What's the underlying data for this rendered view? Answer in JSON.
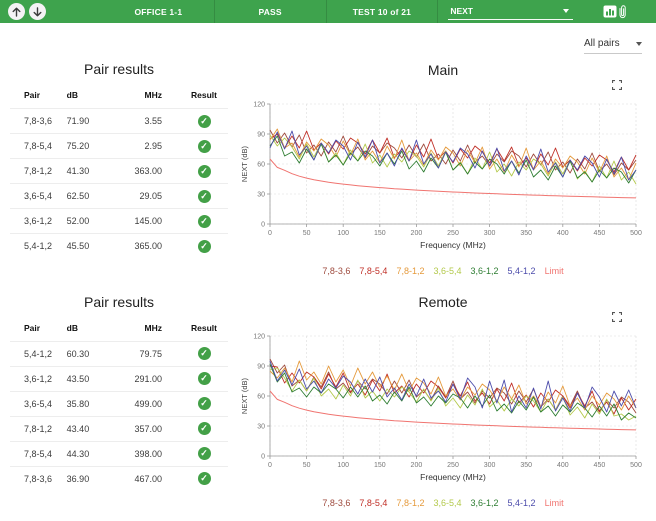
{
  "toolbar": {
    "site_label": "OFFICE 1-1",
    "status_label": "PASS",
    "test_label": "TEST 10 of 21",
    "measurement_select": {
      "value": "NEXT"
    },
    "accent_green": "#3ea34d",
    "icons": [
      "arrow-up",
      "arrow-down",
      "bar-chart",
      "paperclip"
    ]
  },
  "filter": {
    "all_pairs_label": "All pairs"
  },
  "colors": {
    "pass_green": "#43a047",
    "toolbar_green": "#3ea34d"
  },
  "tables": [
    {
      "title": "Pair results",
      "columns": [
        "Pair",
        "dB",
        "MHz",
        "Result"
      ],
      "rows": [
        {
          "pair": "7,8-3,6",
          "db": "71.90",
          "mhz": "3.55",
          "result": "pass"
        },
        {
          "pair": "7,8-5,4",
          "db": "75.20",
          "mhz": "2.95",
          "result": "pass"
        },
        {
          "pair": "7,8-1,2",
          "db": "41.30",
          "mhz": "363.00",
          "result": "pass"
        },
        {
          "pair": "3,6-5,4",
          "db": "62.50",
          "mhz": "29.05",
          "result": "pass"
        },
        {
          "pair": "3,6-1,2",
          "db": "52.00",
          "mhz": "145.00",
          "result": "pass"
        },
        {
          "pair": "5,4-1,2",
          "db": "45.50",
          "mhz": "365.00",
          "result": "pass"
        }
      ]
    },
    {
      "title": "Pair results",
      "columns": [
        "Pair",
        "dB",
        "MHz",
        "Result"
      ],
      "rows": [
        {
          "pair": "5,4-1,2",
          "db": "60.30",
          "mhz": "79.75",
          "result": "pass"
        },
        {
          "pair": "3,6-1,2",
          "db": "43.50",
          "mhz": "291.00",
          "result": "pass"
        },
        {
          "pair": "3,6-5,4",
          "db": "35.80",
          "mhz": "499.00",
          "result": "pass"
        },
        {
          "pair": "7,8-1,2",
          "db": "43.40",
          "mhz": "357.00",
          "result": "pass"
        },
        {
          "pair": "7,8-5,4",
          "db": "44.30",
          "mhz": "398.00",
          "result": "pass"
        },
        {
          "pair": "7,8-3,6",
          "db": "36.90",
          "mhz": "467.00",
          "result": "pass"
        }
      ]
    }
  ],
  "chart_data": [
    {
      "type": "line",
      "title": "Main",
      "xlabel": "Frequency (MHz)",
      "ylabel": "NEXT (dB)",
      "xlim": [
        0,
        500
      ],
      "ylim": [
        0,
        120
      ],
      "xticks": [
        0,
        50,
        100,
        150,
        200,
        250,
        300,
        350,
        400,
        450,
        500
      ],
      "yticks": [
        0,
        30,
        60,
        90,
        120
      ],
      "grid": true,
      "legend_position": "bottom",
      "x": [
        0,
        10,
        20,
        30,
        40,
        50,
        60,
        70,
        80,
        90,
        100,
        110,
        120,
        130,
        140,
        150,
        160,
        170,
        180,
        190,
        200,
        210,
        220,
        230,
        240,
        250,
        260,
        270,
        280,
        290,
        300,
        310,
        320,
        330,
        340,
        350,
        360,
        370,
        380,
        390,
        400,
        410,
        420,
        430,
        440,
        450,
        460,
        470,
        480,
        490,
        500
      ],
      "series": [
        {
          "name": "7,8-3,6",
          "color": "#9e4a3d",
          "values": [
            94,
            81,
            91,
            77,
            89,
            71,
            79,
            68,
            82,
            72,
            88,
            70,
            77,
            66,
            78,
            71,
            81,
            76,
            66,
            79,
            67,
            80,
            63,
            70,
            60,
            74,
            63,
            79,
            62,
            68,
            58,
            70,
            62,
            73,
            68,
            57,
            70,
            59,
            72,
            54,
            62,
            51,
            65,
            55,
            71,
            53,
            60,
            49,
            61,
            54,
            64
          ]
        },
        {
          "name": "7,8-5,4",
          "color": "#c02f27",
          "values": [
            85,
            90,
            76,
            88,
            76,
            93,
            74,
            81,
            70,
            83,
            75,
            86,
            81,
            70,
            84,
            71,
            86,
            66,
            75,
            63,
            79,
            67,
            85,
            65,
            73,
            61,
            75,
            66,
            78,
            72,
            61,
            75,
            63,
            77,
            58,
            66,
            55,
            70,
            59,
            76,
            57,
            64,
            53,
            66,
            58,
            69,
            64,
            52,
            67,
            54,
            69
          ]
        },
        {
          "name": "7,8-1,2",
          "color": "#e59a3c",
          "values": [
            84,
            95,
            76,
            81,
            67,
            82,
            73,
            85,
            79,
            67,
            83,
            69,
            85,
            64,
            73,
            61,
            78,
            65,
            84,
            63,
            71,
            59,
            74,
            64,
            77,
            71,
            58,
            74,
            61,
            77,
            55,
            65,
            52,
            69,
            57,
            76,
            54,
            63,
            50,
            65,
            56,
            68,
            62,
            50,
            66,
            52,
            68,
            47,
            56,
            44,
            61
          ]
        },
        {
          "name": "3,6-5,4",
          "color": "#b3c94b",
          "values": [
            89,
            78,
            86,
            77,
            65,
            80,
            67,
            81,
            62,
            71,
            59,
            74,
            63,
            80,
            61,
            69,
            57,
            70,
            62,
            73,
            68,
            57,
            71,
            58,
            73,
            54,
            62,
            50,
            66,
            55,
            72,
            52,
            60,
            48,
            62,
            54,
            65,
            60,
            48,
            62,
            50,
            64,
            45,
            53,
            42,
            58,
            46,
            63,
            44,
            52,
            40
          ]
        },
        {
          "name": "3,6-1,2",
          "color": "#2e7d32",
          "values": [
            78,
            88,
            68,
            72,
            61,
            75,
            64,
            80,
            62,
            69,
            59,
            71,
            63,
            73,
            68,
            58,
            71,
            60,
            73,
            55,
            63,
            52,
            66,
            56,
            72,
            54,
            61,
            50,
            62,
            55,
            65,
            60,
            50,
            63,
            51,
            64,
            47,
            54,
            44,
            58,
            47,
            63,
            46,
            52,
            42,
            54,
            46,
            56,
            52,
            41,
            54
          ]
        },
        {
          "name": "5,4-1,2",
          "color": "#4c4cab",
          "values": [
            76,
            92,
            75,
            93,
            69,
            78,
            64,
            81,
            71,
            84,
            78,
            64,
            82,
            67,
            84,
            61,
            71,
            58,
            76,
            63,
            84,
            60,
            70,
            56,
            72,
            62,
            76,
            70,
            56,
            73,
            58,
            76,
            53,
            63,
            49,
            68,
            54,
            75,
            52,
            61,
            47,
            64,
            54,
            68,
            61,
            47,
            65,
            50,
            67,
            44,
            54
          ]
        },
        {
          "name": "Limit",
          "color": "#f07470",
          "values": [
            65,
            56.6,
            53.7,
            50.3,
            47.8,
            45.9,
            44.3,
            43,
            41.8,
            40.8,
            39.9,
            39.1,
            38.3,
            37.6,
            37,
            36.4,
            35.9,
            35.3,
            34.9,
            34.4,
            33.9,
            33.5,
            33.1,
            32.7,
            32.4,
            32,
            31.7,
            31.4,
            31,
            30.7,
            30.5,
            30.2,
            29.9,
            29.6,
            29.4,
            29.1,
            28.9,
            28.7,
            28.4,
            28.2,
            28,
            27.8,
            27.6,
            27.4,
            27.2,
            27,
            26.8,
            26.6,
            26.4,
            26.2,
            26.1
          ]
        }
      ]
    },
    {
      "type": "line",
      "title": "Remote",
      "xlabel": "Frequency (MHz)",
      "ylabel": "NEXT (dB)",
      "xlim": [
        0,
        500
      ],
      "ylim": [
        0,
        120
      ],
      "xticks": [
        0,
        50,
        100,
        150,
        200,
        250,
        300,
        350,
        400,
        450,
        500
      ],
      "yticks": [
        0,
        30,
        60,
        90,
        120
      ],
      "grid": true,
      "legend_position": "bottom",
      "x": [
        0,
        10,
        20,
        30,
        40,
        50,
        60,
        70,
        80,
        90,
        100,
        110,
        120,
        130,
        140,
        150,
        160,
        170,
        180,
        190,
        200,
        210,
        220,
        230,
        240,
        250,
        260,
        270,
        280,
        290,
        300,
        310,
        320,
        330,
        340,
        350,
        360,
        370,
        380,
        390,
        400,
        410,
        420,
        430,
        440,
        450,
        460,
        470,
        480,
        490,
        500
      ],
      "series": [
        {
          "name": "7,8-3,6",
          "color": "#9e4a3d",
          "values": [
            97,
            83,
            91,
            70,
            76,
            65,
            79,
            69,
            84,
            67,
            73,
            63,
            75,
            67,
            77,
            72,
            62,
            75,
            63,
            76,
            59,
            66,
            56,
            70,
            59,
            75,
            57,
            64,
            53,
            65,
            58,
            68,
            63,
            52,
            65,
            54,
            67,
            49,
            57,
            46,
            60,
            50,
            65,
            48,
            54,
            44,
            56,
            48,
            59,
            54,
            43
          ]
        },
        {
          "name": "7,8-5,4",
          "color": "#c02f27",
          "values": [
            90,
            89,
            73,
            83,
            73,
            84,
            79,
            67,
            82,
            69,
            83,
            64,
            72,
            61,
            76,
            65,
            82,
            63,
            70,
            59,
            72,
            63,
            75,
            69,
            58,
            72,
            60,
            74,
            55,
            63,
            52,
            67,
            55,
            73,
            53,
            61,
            49,
            63,
            54,
            66,
            60,
            48,
            63,
            50,
            65,
            45,
            54,
            42,
            58,
            46,
            57
          ]
        },
        {
          "name": "7,8-1,2",
          "color": "#e59a3c",
          "values": [
            85,
            78,
            88,
            74,
            95,
            76,
            84,
            72,
            90,
            74,
            86,
            70,
            88,
            72,
            84,
            69,
            80,
            66,
            82,
            65,
            78,
            73,
            62,
            79,
            60,
            67,
            56,
            69,
            61,
            72,
            66,
            55,
            69,
            57,
            71,
            52,
            60,
            49,
            64,
            53,
            70,
            50,
            58,
            46,
            60,
            51,
            63,
            57,
            46,
            60,
            48
          ]
        },
        {
          "name": "3,6-5,4",
          "color": "#b3c94b",
          "values": [
            86,
            88,
            78,
            65,
            76,
            65,
            78,
            60,
            67,
            57,
            71,
            60,
            76,
            58,
            65,
            55,
            67,
            59,
            69,
            64,
            54,
            67,
            55,
            68,
            50,
            58,
            48,
            61,
            51,
            67,
            49,
            56,
            45,
            57,
            50,
            60,
            55,
            44,
            57,
            46,
            59,
            41,
            49,
            38,
            52,
            42,
            57,
            40,
            42,
            36,
            40
          ]
        },
        {
          "name": "3,6-1,2",
          "color": "#2e7d32",
          "values": [
            92,
            74,
            83,
            64,
            68,
            59,
            69,
            63,
            72,
            67,
            58,
            69,
            59,
            70,
            55,
            61,
            52,
            64,
            55,
            69,
            53,
            59,
            50,
            60,
            53,
            62,
            58,
            48,
            60,
            50,
            61,
            45,
            52,
            43,
            55,
            46,
            59,
            44,
            50,
            40,
            51,
            44,
            53,
            48,
            39,
            50,
            40,
            52,
            36,
            43,
            38
          ]
        },
        {
          "name": "5,4-1,2",
          "color": "#4c4cab",
          "values": [
            95,
            75,
            86,
            71,
            87,
            67,
            75,
            63,
            77,
            68,
            80,
            74,
            62,
            77,
            64,
            79,
            59,
            68,
            56,
            72,
            60,
            77,
            58,
            65,
            54,
            72,
            57,
            78,
            69,
            48,
            75,
            53,
            76,
            44,
            60,
            48,
            68,
            47,
            75,
            45,
            58,
            45,
            63,
            48,
            69,
            59,
            44,
            65,
            50,
            66,
            48
          ]
        },
        {
          "name": "Limit",
          "color": "#f07470",
          "values": [
            65,
            56.6,
            53.7,
            50.3,
            47.8,
            45.9,
            44.3,
            43,
            41.8,
            40.8,
            39.9,
            39.1,
            38.3,
            37.6,
            37,
            36.4,
            35.9,
            35.3,
            34.9,
            34.4,
            33.9,
            33.5,
            33.1,
            32.7,
            32.4,
            32,
            31.7,
            31.4,
            31,
            30.7,
            30.5,
            30.2,
            29.9,
            29.6,
            29.4,
            29.1,
            28.9,
            28.7,
            28.4,
            28.2,
            28,
            27.8,
            27.6,
            27.4,
            27.2,
            27,
            26.8,
            26.6,
            26.4,
            26.2,
            26.1
          ]
        }
      ]
    }
  ]
}
